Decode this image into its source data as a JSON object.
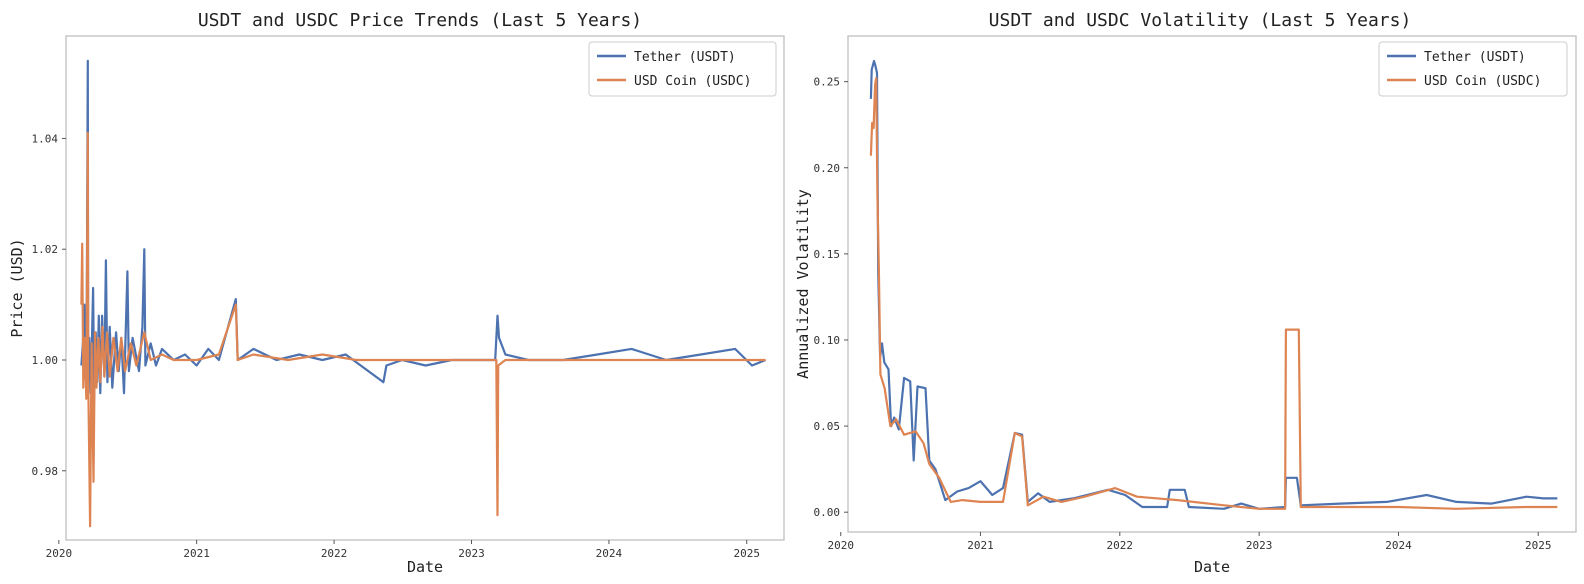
{
  "chart_data": [
    {
      "type": "line",
      "title": "USDT and USDC Price Trends (Last 5 Years)",
      "xlabel": "Date",
      "ylabel": "Price (USD)",
      "xlim": [
        "2020-01-20",
        "2025-04-10"
      ],
      "ylim": [
        0.9675,
        1.0585
      ],
      "x_ticks": [
        "2020",
        "2021",
        "2022",
        "2023",
        "2024",
        "2025"
      ],
      "y_ticks": [
        0.98,
        1.0,
        1.02,
        1.04
      ],
      "y_tick_labels": [
        "0.98",
        "1.00",
        "1.02",
        "1.04"
      ],
      "grid": false,
      "legend": "top-right",
      "series": [
        {
          "name": "Tether (USDT)",
          "color": "#4c72b0",
          "points": [
            [
              "2020-03-01",
              0.999
            ],
            [
              "2020-03-05",
              1.003
            ],
            [
              "2020-03-09",
              1.01
            ],
            [
              "2020-03-12",
              0.998
            ],
            [
              "2020-03-15",
              1.006
            ],
            [
              "2020-03-18",
              1.054
            ],
            [
              "2020-03-19",
              0.996
            ],
            [
              "2020-03-22",
              1.004
            ],
            [
              "2020-03-26",
              0.994
            ],
            [
              "2020-04-01",
              1.013
            ],
            [
              "2020-04-04",
              0.993
            ],
            [
              "2020-04-08",
              1.005
            ],
            [
              "2020-04-12",
              0.996
            ],
            [
              "2020-04-16",
              1.008
            ],
            [
              "2020-04-20",
              0.994
            ],
            [
              "2020-04-25",
              1.008
            ],
            [
              "2020-05-01",
              0.997
            ],
            [
              "2020-05-05",
              1.018
            ],
            [
              "2020-05-09",
              0.996
            ],
            [
              "2020-05-15",
              1.006
            ],
            [
              "2020-05-22",
              0.995
            ],
            [
              "2020-06-01",
              1.005
            ],
            [
              "2020-06-08",
              0.998
            ],
            [
              "2020-06-15",
              1.004
            ],
            [
              "2020-06-22",
              0.994
            ],
            [
              "2020-07-01",
              1.016
            ],
            [
              "2020-07-05",
              0.998
            ],
            [
              "2020-07-15",
              1.004
            ],
            [
              "2020-08-01",
              0.998
            ],
            [
              "2020-08-10",
              1.006
            ],
            [
              "2020-08-15",
              1.02
            ],
            [
              "2020-08-18",
              0.999
            ],
            [
              "2020-09-01",
              1.003
            ],
            [
              "2020-09-15",
              0.999
            ],
            [
              "2020-10-01",
              1.002
            ],
            [
              "2020-11-01",
              1.0
            ],
            [
              "2020-12-01",
              1.001
            ],
            [
              "2021-01-01",
              0.999
            ],
            [
              "2021-02-01",
              1.002
            ],
            [
              "2021-03-01",
              1.0
            ],
            [
              "2021-04-15",
              1.011
            ],
            [
              "2021-04-20",
              1.0
            ],
            [
              "2021-06-01",
              1.002
            ],
            [
              "2021-08-01",
              1.0
            ],
            [
              "2021-10-01",
              1.001
            ],
            [
              "2021-12-01",
              1.0
            ],
            [
              "2022-02-01",
              1.001
            ],
            [
              "2022-05-12",
              0.996
            ],
            [
              "2022-05-20",
              0.999
            ],
            [
              "2022-07-01",
              1.0
            ],
            [
              "2022-09-01",
              0.999
            ],
            [
              "2022-11-10",
              1.0
            ],
            [
              "2023-01-01",
              1.0
            ],
            [
              "2023-03-05",
              1.0
            ],
            [
              "2023-03-11",
              1.008
            ],
            [
              "2023-03-15",
              1.004
            ],
            [
              "2023-04-01",
              1.001
            ],
            [
              "2023-06-01",
              1.0
            ],
            [
              "2023-09-01",
              1.0
            ],
            [
              "2023-12-01",
              1.001
            ],
            [
              "2024-03-01",
              1.002
            ],
            [
              "2024-06-01",
              1.0
            ],
            [
              "2024-09-01",
              1.001
            ],
            [
              "2024-12-01",
              1.002
            ],
            [
              "2025-01-15",
              0.999
            ],
            [
              "2025-02-20",
              1.0
            ]
          ]
        },
        {
          "name": "USD Coin (USDC)",
          "color": "#dd8452",
          "points": [
            [
              "2020-03-01",
              1.01
            ],
            [
              "2020-03-03",
              1.021
            ],
            [
              "2020-03-06",
              0.995
            ],
            [
              "2020-03-10",
              1.004
            ],
            [
              "2020-03-14",
              0.993
            ],
            [
              "2020-03-18",
              1.041
            ],
            [
              "2020-03-19",
              0.997
            ],
            [
              "2020-03-24",
              0.97
            ],
            [
              "2020-03-28",
              1.003
            ],
            [
              "2020-04-02",
              0.978
            ],
            [
              "2020-04-06",
              1.005
            ],
            [
              "2020-04-10",
              0.995
            ],
            [
              "2020-04-15",
              1.004
            ],
            [
              "2020-04-20",
              0.996
            ],
            [
              "2020-04-26",
              1.006
            ],
            [
              "2020-05-01",
              0.997
            ],
            [
              "2020-05-08",
              1.005
            ],
            [
              "2020-05-15",
              0.997
            ],
            [
              "2020-05-25",
              1.004
            ],
            [
              "2020-06-05",
              0.998
            ],
            [
              "2020-06-15",
              1.004
            ],
            [
              "2020-06-25",
              0.998
            ],
            [
              "2020-07-10",
              1.003
            ],
            [
              "2020-07-25",
              0.999
            ],
            [
              "2020-08-15",
              1.005
            ],
            [
              "2020-09-01",
              1.0
            ],
            [
              "2020-10-01",
              1.001
            ],
            [
              "2020-11-01",
              1.0
            ],
            [
              "2021-01-01",
              1.0
            ],
            [
              "2021-03-01",
              1.001
            ],
            [
              "2021-04-15",
              1.01
            ],
            [
              "2021-04-20",
              1.0
            ],
            [
              "2021-06-01",
              1.001
            ],
            [
              "2021-09-01",
              1.0
            ],
            [
              "2021-12-01",
              1.001
            ],
            [
              "2022-03-01",
              1.0
            ],
            [
              "2022-06-01",
              1.0
            ],
            [
              "2022-10-01",
              1.0
            ],
            [
              "2023-01-01",
              1.0
            ],
            [
              "2023-03-08",
              1.0
            ],
            [
              "2023-03-11",
              0.972
            ],
            [
              "2023-03-13",
              0.999
            ],
            [
              "2023-04-01",
              1.0
            ],
            [
              "2023-08-01",
              1.0
            ],
            [
              "2024-01-01",
              1.0
            ],
            [
              "2024-06-01",
              1.0
            ],
            [
              "2025-01-01",
              1.0
            ],
            [
              "2025-02-20",
              1.0
            ]
          ]
        }
      ]
    },
    {
      "type": "line",
      "title": "USDT and USDC Volatility (Last 5 Years)",
      "xlabel": "Date",
      "ylabel": "Annualized Volatility",
      "xlim": [
        "2020-01-20",
        "2025-04-10"
      ],
      "ylim": [
        -0.0115,
        0.2765
      ],
      "x_ticks": [
        "2020",
        "2021",
        "2022",
        "2023",
        "2024",
        "2025"
      ],
      "y_ticks": [
        0.0,
        0.05,
        0.1,
        0.15,
        0.2,
        0.25
      ],
      "y_tick_labels": [
        "0.00",
        "0.05",
        "0.10",
        "0.15",
        "0.20",
        "0.25"
      ],
      "grid": false,
      "legend": "top-right",
      "series": [
        {
          "name": "Tether (USDT)",
          "color": "#4c72b0",
          "points": [
            [
              "2020-03-20",
              0.24
            ],
            [
              "2020-03-22",
              0.257
            ],
            [
              "2020-03-28",
              0.262
            ],
            [
              "2020-04-01",
              0.259
            ],
            [
              "2020-04-05",
              0.255
            ],
            [
              "2020-04-08",
              0.14
            ],
            [
              "2020-04-13",
              0.09
            ],
            [
              "2020-04-18",
              0.098
            ],
            [
              "2020-04-24",
              0.087
            ],
            [
              "2020-05-05",
              0.083
            ],
            [
              "2020-05-12",
              0.05
            ],
            [
              "2020-05-20",
              0.055
            ],
            [
              "2020-06-01",
              0.048
            ],
            [
              "2020-06-15",
              0.078
            ],
            [
              "2020-07-01",
              0.076
            ],
            [
              "2020-07-10",
              0.03
            ],
            [
              "2020-07-20",
              0.073
            ],
            [
              "2020-08-10",
              0.072
            ],
            [
              "2020-08-20",
              0.03
            ],
            [
              "2020-09-05",
              0.025
            ],
            [
              "2020-10-01",
              0.007
            ],
            [
              "2020-11-01",
              0.012
            ],
            [
              "2020-12-01",
              0.014
            ],
            [
              "2021-01-01",
              0.018
            ],
            [
              "2021-02-01",
              0.01
            ],
            [
              "2021-03-01",
              0.014
            ],
            [
              "2021-04-01",
              0.046
            ],
            [
              "2021-04-20",
              0.045
            ],
            [
              "2021-05-05",
              0.006
            ],
            [
              "2021-06-01",
              0.011
            ],
            [
              "2021-07-01",
              0.006
            ],
            [
              "2021-09-01",
              0.008
            ],
            [
              "2021-12-01",
              0.013
            ],
            [
              "2022-01-15",
              0.01
            ],
            [
              "2022-03-01",
              0.003
            ],
            [
              "2022-05-05",
              0.003
            ],
            [
              "2022-05-12",
              0.013
            ],
            [
              "2022-06-20",
              0.013
            ],
            [
              "2022-07-01",
              0.003
            ],
            [
              "2022-10-01",
              0.002
            ],
            [
              "2022-11-15",
              0.005
            ],
            [
              "2023-01-01",
              0.002
            ],
            [
              "2023-03-10",
              0.003
            ],
            [
              "2023-03-12",
              0.02
            ],
            [
              "2023-04-10",
              0.02
            ],
            [
              "2023-04-20",
              0.004
            ],
            [
              "2023-08-01",
              0.005
            ],
            [
              "2023-12-01",
              0.006
            ],
            [
              "2024-03-15",
              0.01
            ],
            [
              "2024-06-01",
              0.006
            ],
            [
              "2024-09-01",
              0.005
            ],
            [
              "2024-12-01",
              0.009
            ],
            [
              "2025-01-15",
              0.008
            ],
            [
              "2025-02-20",
              0.008
            ]
          ]
        },
        {
          "name": "USD Coin (USDC)",
          "color": "#dd8452",
          "points": [
            [
              "2020-03-20",
              0.207
            ],
            [
              "2020-03-23",
              0.226
            ],
            [
              "2020-03-27",
              0.223
            ],
            [
              "2020-03-31",
              0.248
            ],
            [
              "2020-04-03",
              0.252
            ],
            [
              "2020-04-06",
              0.185
            ],
            [
              "2020-04-10",
              0.14
            ],
            [
              "2020-04-14",
              0.08
            ],
            [
              "2020-04-25",
              0.072
            ],
            [
              "2020-05-10",
              0.05
            ],
            [
              "2020-05-25",
              0.054
            ],
            [
              "2020-06-15",
              0.045
            ],
            [
              "2020-07-15",
              0.047
            ],
            [
              "2020-08-05",
              0.04
            ],
            [
              "2020-08-20",
              0.028
            ],
            [
              "2020-09-15",
              0.02
            ],
            [
              "2020-10-15",
              0.006
            ],
            [
              "2020-11-15",
              0.007
            ],
            [
              "2021-01-01",
              0.006
            ],
            [
              "2021-03-01",
              0.006
            ],
            [
              "2021-04-01",
              0.046
            ],
            [
              "2021-04-20",
              0.044
            ],
            [
              "2021-05-05",
              0.004
            ],
            [
              "2021-06-15",
              0.009
            ],
            [
              "2021-08-01",
              0.006
            ],
            [
              "2021-10-01",
              0.009
            ],
            [
              "2021-12-20",
              0.014
            ],
            [
              "2022-02-15",
              0.009
            ],
            [
              "2022-06-01",
              0.007
            ],
            [
              "2022-10-01",
              0.004
            ],
            [
              "2023-01-01",
              0.002
            ],
            [
              "2023-03-10",
              0.002
            ],
            [
              "2023-03-12",
              0.106
            ],
            [
              "2023-04-15",
              0.106
            ],
            [
              "2023-04-20",
              0.003
            ],
            [
              "2023-08-01",
              0.003
            ],
            [
              "2024-01-01",
              0.003
            ],
            [
              "2024-06-01",
              0.002
            ],
            [
              "2024-12-01",
              0.003
            ],
            [
              "2025-02-20",
              0.003
            ]
          ]
        }
      ]
    }
  ]
}
